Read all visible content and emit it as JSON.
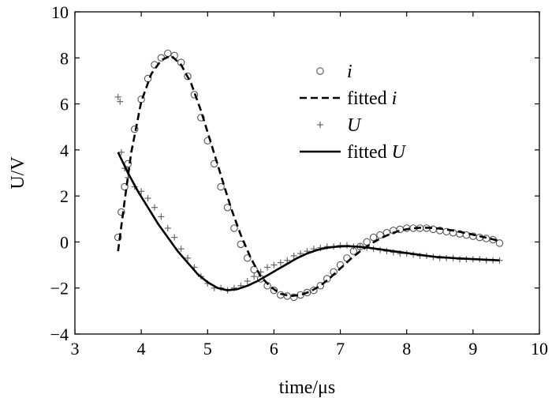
{
  "chart_data": {
    "type": "scatter",
    "xlabel": "time/μs",
    "ylabel": "U/V",
    "xlim": [
      3,
      10
    ],
    "ylim": [
      -4,
      10
    ],
    "xticks": [
      3,
      4,
      5,
      6,
      7,
      8,
      9,
      10
    ],
    "yticks": [
      -4,
      -2,
      0,
      2,
      4,
      6,
      8,
      10
    ],
    "grid": false,
    "legend_position": "top-right",
    "series": [
      {
        "name": "i",
        "legend_prefix": "",
        "legend_italic": "i",
        "kind": "scatter",
        "marker": "circle",
        "x": [
          3.65,
          3.7,
          3.75,
          3.8,
          3.9,
          4.0,
          4.1,
          4.2,
          4.3,
          4.4,
          4.5,
          4.6,
          4.7,
          4.8,
          4.9,
          5.0,
          5.1,
          5.2,
          5.3,
          5.4,
          5.5,
          5.6,
          5.7,
          5.8,
          5.9,
          6.0,
          6.1,
          6.2,
          6.3,
          6.4,
          6.5,
          6.6,
          6.7,
          6.8,
          6.9,
          7.0,
          7.1,
          7.2,
          7.3,
          7.4,
          7.5,
          7.6,
          7.7,
          7.8,
          7.9,
          8.0,
          8.1,
          8.2,
          8.3,
          8.4,
          8.5,
          8.6,
          8.7,
          8.8,
          8.9,
          9.0,
          9.1,
          9.2,
          9.3,
          9.4
        ],
        "y": [
          0.2,
          1.3,
          2.4,
          3.4,
          4.9,
          6.2,
          7.1,
          7.7,
          8.0,
          8.2,
          8.1,
          7.8,
          7.2,
          6.4,
          5.4,
          4.4,
          3.4,
          2.4,
          1.5,
          0.6,
          -0.1,
          -0.7,
          -1.2,
          -1.6,
          -1.9,
          -2.1,
          -2.3,
          -2.35,
          -2.4,
          -2.3,
          -2.2,
          -2.1,
          -1.9,
          -1.6,
          -1.3,
          -1.0,
          -0.7,
          -0.4,
          -0.2,
          0.0,
          0.2,
          0.3,
          0.4,
          0.5,
          0.55,
          0.6,
          0.6,
          0.6,
          0.6,
          0.55,
          0.5,
          0.45,
          0.4,
          0.35,
          0.3,
          0.25,
          0.2,
          0.15,
          0.1,
          -0.05
        ]
      },
      {
        "name": "fitted i",
        "legend_prefix": "fitted ",
        "legend_italic": "i",
        "kind": "line",
        "style": "dashed",
        "x": [
          3.65,
          3.75,
          3.85,
          4.0,
          4.15,
          4.3,
          4.45,
          4.6,
          4.75,
          4.9,
          5.05,
          5.2,
          5.35,
          5.5,
          5.65,
          5.8,
          5.95,
          6.1,
          6.25,
          6.4,
          6.55,
          6.7,
          6.85,
          7.0,
          7.15,
          7.3,
          7.45,
          7.6,
          7.75,
          7.9,
          8.05,
          8.2,
          8.35,
          8.5,
          8.65,
          8.8,
          8.95,
          9.1,
          9.25,
          9.4
        ],
        "y": [
          -0.4,
          1.8,
          3.9,
          6.1,
          7.3,
          7.9,
          8.1,
          7.7,
          6.9,
          5.7,
          4.3,
          2.9,
          1.5,
          0.3,
          -0.7,
          -1.5,
          -1.95,
          -2.25,
          -2.35,
          -2.3,
          -2.15,
          -1.9,
          -1.55,
          -1.15,
          -0.75,
          -0.4,
          -0.1,
          0.15,
          0.35,
          0.5,
          0.58,
          0.62,
          0.62,
          0.58,
          0.52,
          0.44,
          0.35,
          0.25,
          0.15,
          0.05
        ]
      },
      {
        "name": "U",
        "legend_prefix": "",
        "legend_italic": "U",
        "kind": "scatter",
        "marker": "plus",
        "x": [
          3.65,
          3.68,
          3.7,
          3.75,
          3.8,
          3.9,
          4.0,
          4.1,
          4.2,
          4.3,
          4.4,
          4.5,
          4.6,
          4.7,
          4.8,
          4.9,
          5.0,
          5.1,
          5.2,
          5.3,
          5.4,
          5.5,
          5.6,
          5.7,
          5.8,
          5.9,
          6.0,
          6.1,
          6.2,
          6.3,
          6.4,
          6.5,
          6.6,
          6.7,
          6.8,
          6.9,
          7.0,
          7.1,
          7.2,
          7.3,
          7.4,
          7.5,
          7.6,
          7.7,
          7.8,
          7.9,
          8.0,
          8.1,
          8.2,
          8.3,
          8.4,
          8.5,
          8.6,
          8.7,
          8.8,
          8.9,
          9.0,
          9.1,
          9.2,
          9.3,
          9.4
        ],
        "y": [
          6.3,
          6.1,
          3.9,
          3.2,
          2.8,
          2.4,
          2.2,
          1.9,
          1.5,
          1.1,
          0.6,
          0.2,
          -0.3,
          -0.7,
          -1.1,
          -1.5,
          -1.8,
          -2.0,
          -2.0,
          -2.1,
          -2.0,
          -1.9,
          -1.7,
          -1.5,
          -1.3,
          -1.1,
          -1.0,
          -0.9,
          -0.8,
          -0.6,
          -0.5,
          -0.4,
          -0.3,
          -0.25,
          -0.2,
          -0.2,
          -0.15,
          -0.15,
          -0.2,
          -0.2,
          -0.25,
          -0.3,
          -0.35,
          -0.4,
          -0.45,
          -0.5,
          -0.5,
          -0.55,
          -0.6,
          -0.6,
          -0.65,
          -0.7,
          -0.7,
          -0.7,
          -0.75,
          -0.75,
          -0.75,
          -0.75,
          -0.8,
          -0.8,
          -0.8
        ]
      },
      {
        "name": "fitted U",
        "legend_prefix": "fitted ",
        "legend_italic": "U",
        "kind": "line",
        "style": "solid",
        "x": [
          3.65,
          3.8,
          3.95,
          4.1,
          4.25,
          4.4,
          4.55,
          4.7,
          4.85,
          5.0,
          5.15,
          5.3,
          5.45,
          5.6,
          5.75,
          5.9,
          6.05,
          6.2,
          6.35,
          6.5,
          6.65,
          6.8,
          6.95,
          7.1,
          7.25,
          7.4,
          7.55,
          7.7,
          7.85,
          8.0,
          8.15,
          8.3,
          8.45,
          8.6,
          8.75,
          8.9,
          9.05,
          9.2,
          9.4
        ],
        "y": [
          3.9,
          3.0,
          2.2,
          1.5,
          0.8,
          0.2,
          -0.4,
          -0.9,
          -1.4,
          -1.75,
          -2.0,
          -2.1,
          -2.05,
          -1.9,
          -1.7,
          -1.45,
          -1.2,
          -0.95,
          -0.7,
          -0.5,
          -0.35,
          -0.25,
          -0.2,
          -0.18,
          -0.2,
          -0.24,
          -0.3,
          -0.36,
          -0.42,
          -0.48,
          -0.54,
          -0.6,
          -0.65,
          -0.68,
          -0.71,
          -0.73,
          -0.75,
          -0.77,
          -0.8
        ]
      }
    ]
  }
}
